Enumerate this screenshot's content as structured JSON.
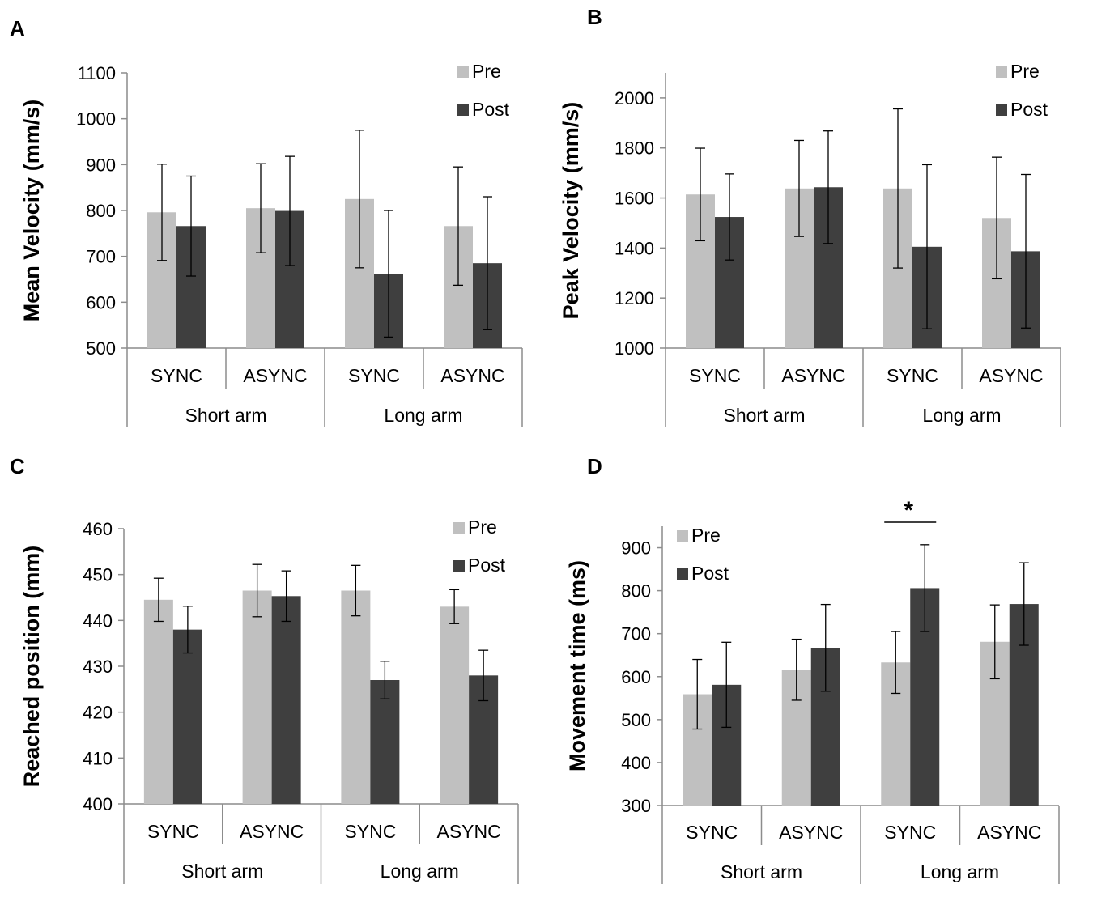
{
  "colors": {
    "pre": "#c0c0c0",
    "post": "#3f3f3f",
    "axis": "#8c8c8c"
  },
  "chart_data": [
    {
      "panel": "A",
      "type": "bar",
      "ylabel": "Mean Velocity (mm/s)",
      "ylim": [
        500,
        1100
      ],
      "yticks": [
        500,
        600,
        700,
        800,
        900,
        1000,
        1100
      ],
      "categories": [
        "SYNC",
        "ASYNC",
        "SYNC",
        "ASYNC"
      ],
      "groups": [
        "Short arm",
        "Long arm"
      ],
      "legend": [
        "Pre",
        "Post"
      ],
      "legend_position": "top-right",
      "series": [
        {
          "name": "Pre",
          "values": [
            796,
            805,
            825,
            766
          ],
          "errors": [
            105,
            97,
            150,
            129
          ]
        },
        {
          "name": "Post",
          "values": [
            766,
            799,
            662,
            685
          ],
          "errors": [
            109,
            119,
            138,
            145
          ]
        }
      ]
    },
    {
      "panel": "B",
      "type": "bar",
      "ylabel": "Peak Velocity (mm/s)",
      "ylim": [
        1000,
        2100
      ],
      "yticks": [
        1000,
        1200,
        1400,
        1600,
        1800,
        2000
      ],
      "categories": [
        "SYNC",
        "ASYNC",
        "SYNC",
        "ASYNC"
      ],
      "groups": [
        "Short arm",
        "Long arm"
      ],
      "legend": [
        "Pre",
        "Post"
      ],
      "legend_position": "top-right",
      "series": [
        {
          "name": "Pre",
          "values": [
            1614,
            1638,
            1638,
            1520
          ],
          "errors": [
            185,
            192,
            318,
            243
          ]
        },
        {
          "name": "Post",
          "values": [
            1524,
            1643,
            1405,
            1387
          ],
          "errors": [
            172,
            225,
            328,
            307
          ]
        }
      ]
    },
    {
      "panel": "C",
      "type": "bar",
      "ylabel": "Reached position (mm)",
      "ylim": [
        400,
        460
      ],
      "yticks": [
        400,
        410,
        420,
        430,
        440,
        450,
        460
      ],
      "categories": [
        "SYNC",
        "ASYNC",
        "SYNC",
        "ASYNC"
      ],
      "groups": [
        "Short arm",
        "Long arm"
      ],
      "legend": [
        "Pre",
        "Post"
      ],
      "legend_position": "top-right",
      "series": [
        {
          "name": "Pre",
          "values": [
            444.5,
            446.5,
            446.5,
            443
          ],
          "errors": [
            4.7,
            5.7,
            5.5,
            3.7
          ]
        },
        {
          "name": "Post",
          "values": [
            438,
            445.3,
            427,
            428
          ],
          "errors": [
            5.1,
            5.5,
            4.1,
            5.5
          ]
        }
      ]
    },
    {
      "panel": "D",
      "type": "bar",
      "ylabel": "Movement time (ms)",
      "ylim": [
        300,
        950
      ],
      "yticks": [
        300,
        400,
        500,
        600,
        700,
        800,
        900
      ],
      "categories": [
        "SYNC",
        "ASYNC",
        "SYNC",
        "ASYNC"
      ],
      "groups": [
        "Short arm",
        "Long arm"
      ],
      "legend": [
        "Pre",
        "Post"
      ],
      "legend_position": "top-left",
      "significance": {
        "label": "*",
        "category_index": 2
      },
      "series": [
        {
          "name": "Pre",
          "values": [
            559,
            616,
            633,
            681
          ],
          "errors": [
            81,
            71,
            72,
            86
          ]
        },
        {
          "name": "Post",
          "values": [
            581,
            667,
            806,
            769
          ],
          "errors": [
            99,
            101,
            101,
            96
          ]
        }
      ]
    }
  ]
}
